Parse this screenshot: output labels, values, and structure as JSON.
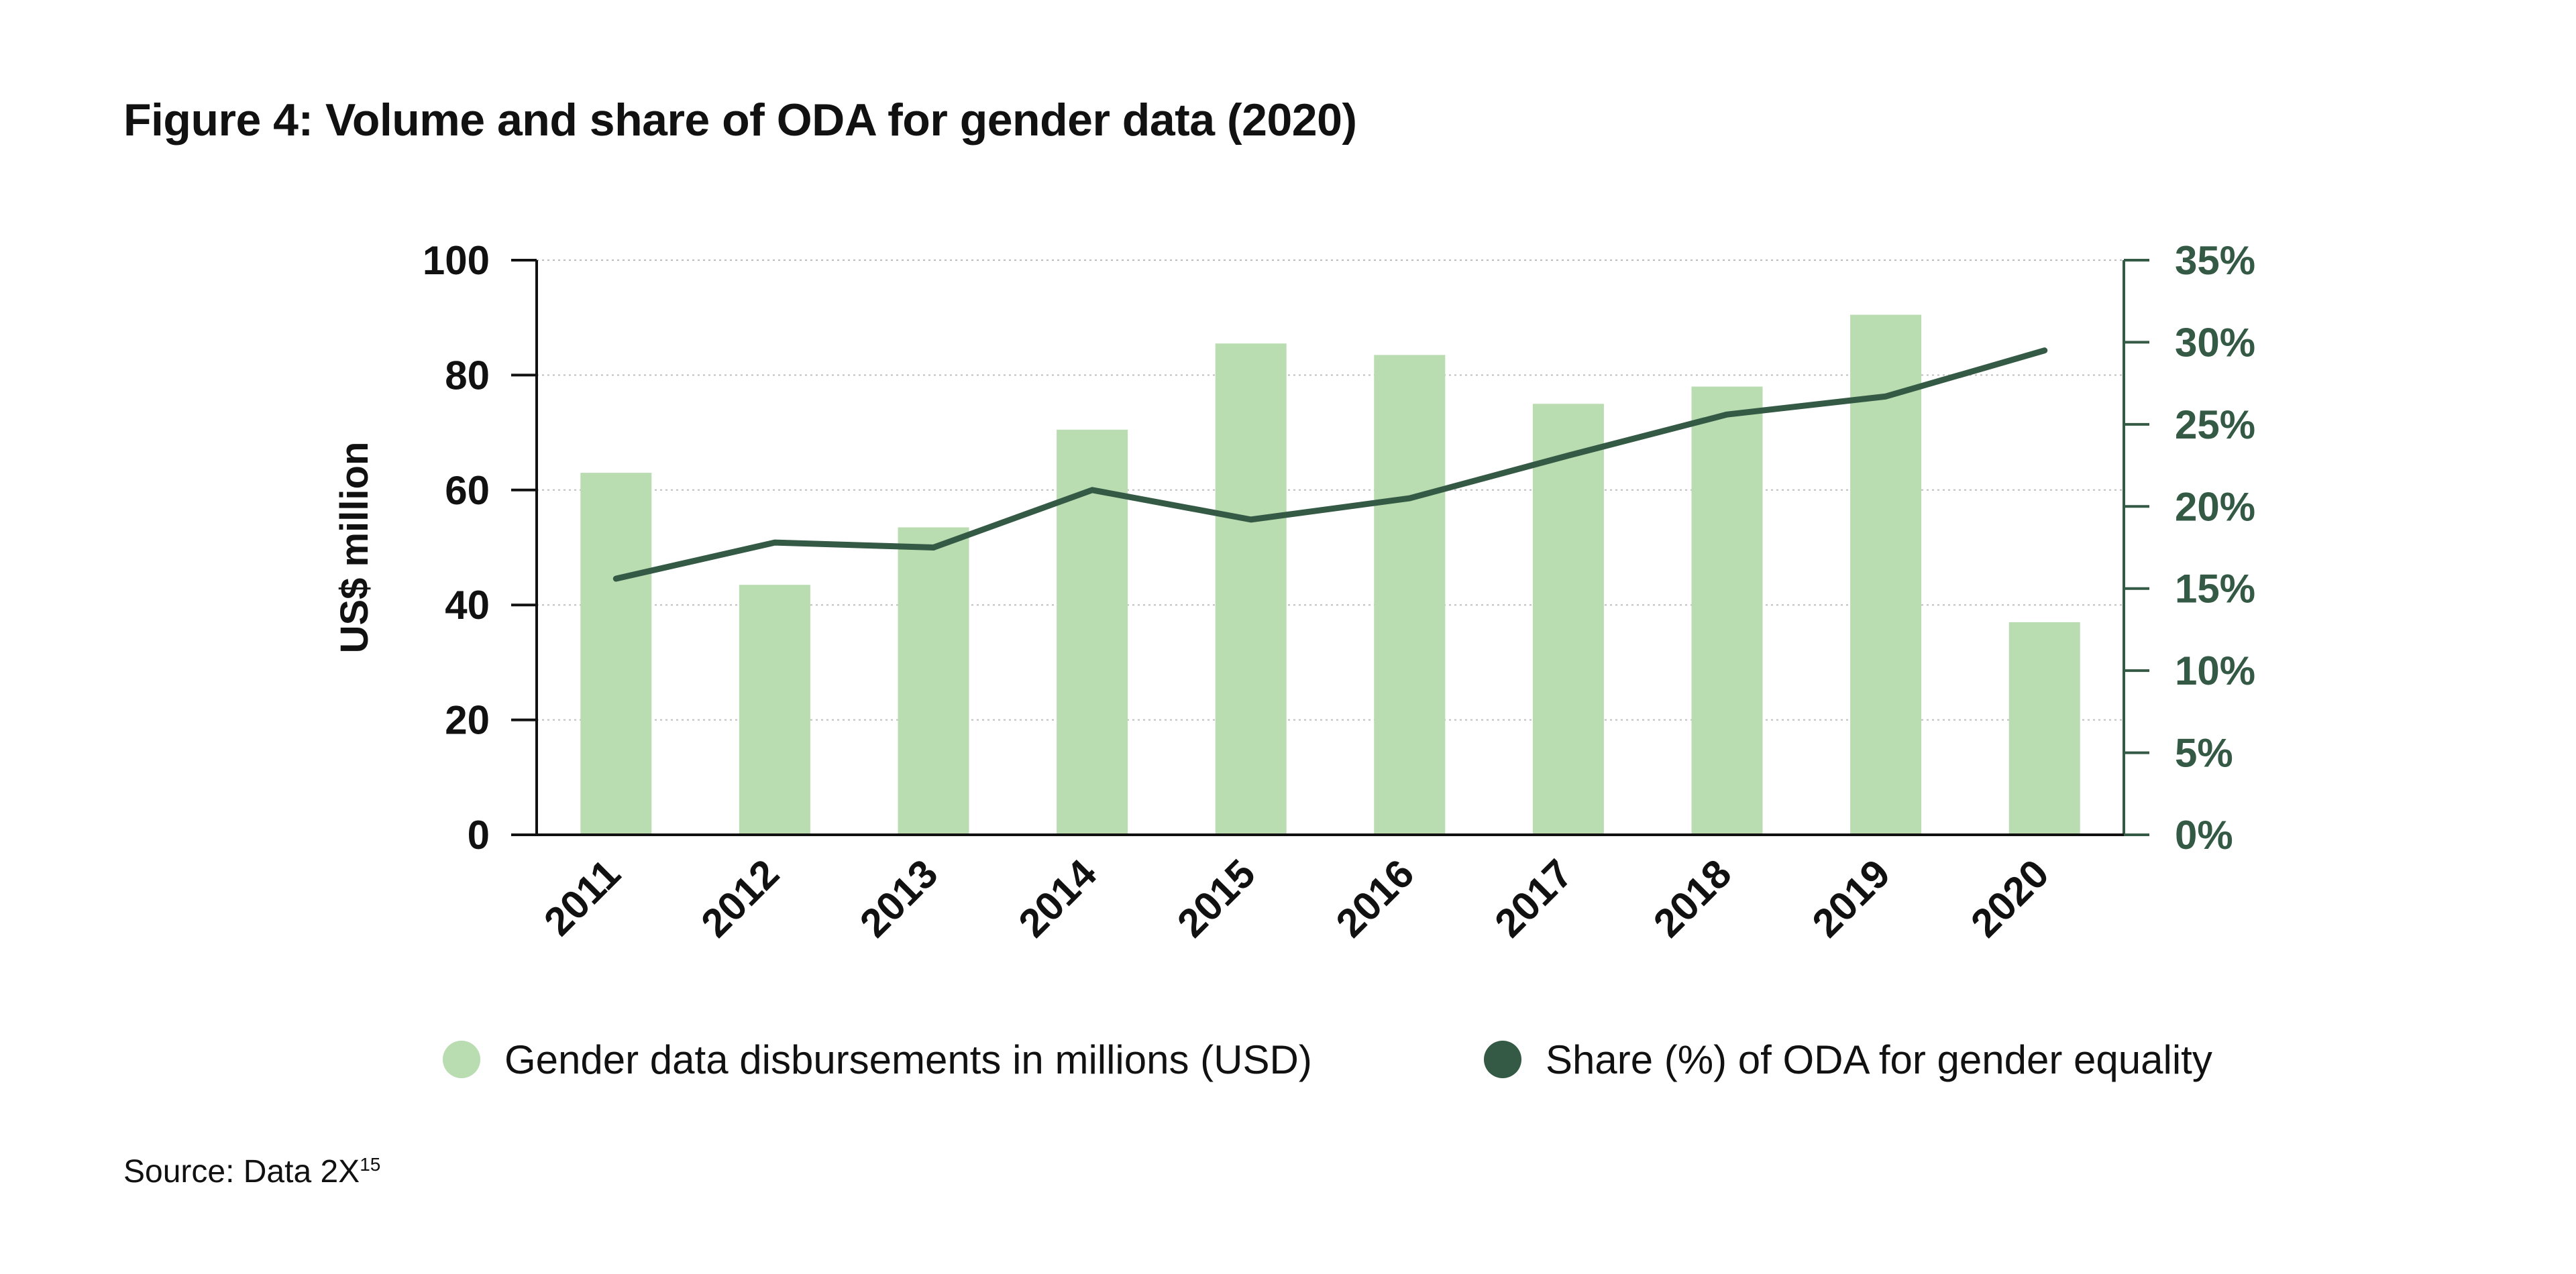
{
  "title": "Figure 4: Volume and share of ODA for gender data (2020)",
  "source": {
    "text": "Source: Data 2X",
    "footnote": "15"
  },
  "colors": {
    "bar": "#b9dcb1",
    "line": "#345a45",
    "axis": "#111111",
    "right_axis": "#345a45",
    "grid": "#bdbdbd"
  },
  "legend": [
    {
      "label": "Gender data disbursements in millions (USD)",
      "color": "#b9dcb1"
    },
    {
      "label": "Share (%) of ODA for gender equality",
      "color": "#345a45"
    }
  ],
  "chart_data": {
    "type": "bar",
    "title": "Figure 4: Volume and share of ODA for gender data (2020)",
    "categories": [
      "2011",
      "2012",
      "2013",
      "2014",
      "2015",
      "2016",
      "2017",
      "2018",
      "2019",
      "2020"
    ],
    "series": [
      {
        "name": "Gender data disbursements in millions (USD)",
        "type": "bar",
        "axis": "left",
        "values": [
          63,
          43.5,
          53.5,
          70.5,
          85.5,
          83.5,
          75,
          78,
          90.5,
          37
        ]
      },
      {
        "name": "Share (%) of ODA for gender equality",
        "type": "line",
        "axis": "right",
        "values": [
          15.6,
          17.8,
          17.5,
          21.0,
          19.2,
          20.5,
          23.1,
          25.6,
          26.7,
          29.5
        ]
      }
    ],
    "ylabel": "US$ million",
    "ylim": [
      0,
      100
    ],
    "yticks": [
      "0",
      "20",
      "40",
      "60",
      "80",
      "100"
    ],
    "y2lim": [
      0,
      35
    ],
    "y2ticks": [
      "0%",
      "5%",
      "10%",
      "15%",
      "20%",
      "25%",
      "30%",
      "35%"
    ],
    "grid": true,
    "legend_position": "bottom"
  }
}
